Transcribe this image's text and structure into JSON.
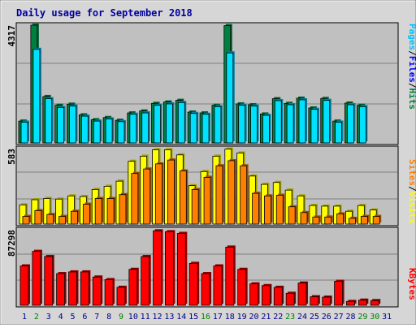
{
  "title": "Daily usage for September 2018",
  "days": [
    "1",
    "2",
    "3",
    "4",
    "5",
    "6",
    "7",
    "8",
    "9",
    "10",
    "11",
    "12",
    "13",
    "14",
    "15",
    "16",
    "17",
    "18",
    "19",
    "20",
    "21",
    "22",
    "23",
    "24",
    "25",
    "26",
    "27",
    "28",
    "29",
    "30",
    "31"
  ],
  "weekend_days": [
    "2",
    "9",
    "16",
    "23",
    "29",
    "30"
  ],
  "colors": {
    "title": "#0000a0",
    "background": "#c0c0c0",
    "page": "#d0d0d0",
    "hits": "#008040",
    "files": "#00e0ff",
    "pages": "#00c0ff",
    "visits": "#ffff00",
    "sites": "#ff8000",
    "kbytes": "#ff0000",
    "weekday": "#008000",
    "weekend": "#000080"
  },
  "chart_data": [
    {
      "type": "bar",
      "panel": "top",
      "y_max_label": "4317",
      "ylim": [
        0,
        4317
      ],
      "legend": [
        {
          "text": "Pages",
          "color": "#00c0ff"
        },
        {
          "text": "Files",
          "color": "#0000ff"
        },
        {
          "text": "Hits",
          "color": "#008040"
        }
      ],
      "series": [
        {
          "name": "Hits",
          "values": [
            800,
            4317,
            1700,
            1380,
            1420,
            1030,
            850,
            930,
            830,
            1100,
            1170,
            1450,
            1500,
            1560,
            1130,
            1100,
            1380,
            4300,
            1430,
            1400,
            1060,
            1620,
            1450,
            1640,
            1280,
            1630,
            800,
            1460,
            1380,
            0,
            0
          ]
        },
        {
          "name": "Files",
          "values": [
            760,
            3430,
            1620,
            1300,
            1350,
            980,
            800,
            880,
            780,
            1050,
            1100,
            1380,
            1430,
            1480,
            1080,
            1050,
            1330,
            3300,
            1380,
            1350,
            1010,
            1550,
            1400,
            1580,
            1230,
            1560,
            760,
            1400,
            1330,
            0,
            0
          ]
        }
      ]
    },
    {
      "type": "bar",
      "panel": "middle",
      "y_max_label": "583",
      "ylim": [
        0,
        583
      ],
      "legend": [
        {
          "text": "Sites",
          "color": "#ff8000"
        },
        {
          "text": "Visits",
          "color": "#ffff00"
        }
      ],
      "series": [
        {
          "name": "Visits",
          "values": [
            150,
            190,
            200,
            195,
            220,
            215,
            270,
            295,
            335,
            490,
            530,
            580,
            580,
            540,
            300,
            410,
            530,
            585,
            555,
            375,
            310,
            325,
            265,
            220,
            145,
            140,
            140,
            100,
            145,
            110,
            0
          ]
        },
        {
          "name": "Sites",
          "values": [
            60,
            105,
            75,
            60,
            100,
            155,
            200,
            200,
            230,
            395,
            430,
            470,
            500,
            415,
            270,
            365,
            455,
            495,
            455,
            240,
            220,
            225,
            135,
            90,
            55,
            55,
            80,
            45,
            60,
            60,
            0
          ]
        }
      ]
    },
    {
      "type": "bar",
      "panel": "bottom",
      "y_max_label": "87298",
      "ylim": [
        0,
        87298
      ],
      "legend": [
        {
          "text": "KBytes",
          "color": "#ff0000"
        }
      ],
      "series": [
        {
          "name": "KBytes",
          "values": [
            46000,
            63000,
            57000,
            37000,
            39000,
            39000,
            33000,
            30000,
            21000,
            42000,
            57000,
            87000,
            86000,
            84000,
            49000,
            37000,
            46000,
            68000,
            42000,
            25000,
            23000,
            21000,
            14000,
            26000,
            10000,
            9500,
            28000,
            4500,
            6000,
            5500,
            0
          ]
        }
      ]
    }
  ]
}
